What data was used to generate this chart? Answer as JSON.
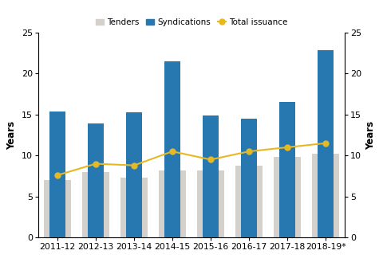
{
  "categories": [
    "2011-12",
    "2012-13",
    "2013-14",
    "2014-15",
    "2015-16",
    "2016-17",
    "2017-18",
    "2018-19*"
  ],
  "tenders": [
    7.0,
    8.0,
    7.3,
    8.2,
    8.2,
    8.8,
    9.8,
    10.2
  ],
  "syndications": [
    15.4,
    13.9,
    15.3,
    21.5,
    14.9,
    14.5,
    16.5,
    22.8
  ],
  "total_issuance": [
    7.6,
    9.0,
    8.8,
    10.5,
    9.5,
    10.5,
    11.0,
    11.5
  ],
  "tenders_color": "#d4d0cb",
  "syndications_color": "#2778b0",
  "total_issuance_color": "#e8b820",
  "ylim": [
    0,
    25
  ],
  "yticks": [
    0,
    5,
    10,
    15,
    20,
    25
  ],
  "ylabel_left": "Years",
  "ylabel_right": "Years",
  "legend_labels": [
    "Tenders",
    "Syndications",
    "Total issuance"
  ],
  "background_color": "#ffffff",
  "tenders_bar_width": 0.72,
  "syndications_bar_width": 0.42,
  "figsize": [
    4.8,
    3.39
  ],
  "dpi": 100
}
